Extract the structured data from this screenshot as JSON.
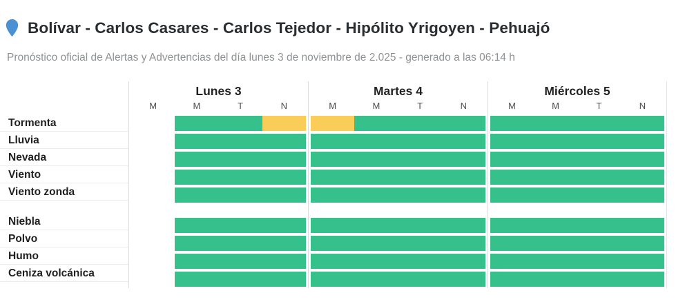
{
  "colors": {
    "alert_ok_green": "#36c18c",
    "alert_warn_yellow": "#f9cd57",
    "pin_blue": "#4a90d2"
  },
  "header": {
    "title": "Bolívar - Carlos Casares - Carlos Tejedor - Hipólito Yrigoyen - Pehuajó",
    "subtitle": "Pronóstico oficial de Alertas y Advertencias del día lunes 3 de noviembre de 2.025 - generado a las 06:14 h"
  },
  "table": {
    "days": [
      {
        "label": "Lunes 3",
        "periods": [
          "M",
          "M",
          "T",
          "N"
        ]
      },
      {
        "label": "Martes 4",
        "periods": [
          "M",
          "M",
          "T",
          "N"
        ]
      },
      {
        "label": "Miércoles 5",
        "periods": [
          "M",
          "M",
          "T",
          "N"
        ]
      }
    ],
    "row_groups": [
      {
        "rows": [
          {
            "label": "Tormenta",
            "cells": [
              [
                "none",
                "ok",
                "ok",
                "warn"
              ],
              [
                "warn",
                "ok",
                "ok",
                "ok"
              ],
              [
                "ok",
                "ok",
                "ok",
                "ok"
              ]
            ]
          },
          {
            "label": "Lluvia",
            "cells": [
              [
                "none",
                "ok",
                "ok",
                "ok"
              ],
              [
                "ok",
                "ok",
                "ok",
                "ok"
              ],
              [
                "ok",
                "ok",
                "ok",
                "ok"
              ]
            ]
          },
          {
            "label": "Nevada",
            "cells": [
              [
                "none",
                "ok",
                "ok",
                "ok"
              ],
              [
                "ok",
                "ok",
                "ok",
                "ok"
              ],
              [
                "ok",
                "ok",
                "ok",
                "ok"
              ]
            ]
          },
          {
            "label": "Viento",
            "cells": [
              [
                "none",
                "ok",
                "ok",
                "ok"
              ],
              [
                "ok",
                "ok",
                "ok",
                "ok"
              ],
              [
                "ok",
                "ok",
                "ok",
                "ok"
              ]
            ]
          },
          {
            "label": "Viento zonda",
            "cells": [
              [
                "none",
                "ok",
                "ok",
                "ok"
              ],
              [
                "ok",
                "ok",
                "ok",
                "ok"
              ],
              [
                "ok",
                "ok",
                "ok",
                "ok"
              ]
            ]
          }
        ]
      },
      {
        "rows": [
          {
            "label": "Niebla",
            "cells": [
              [
                "none",
                "ok",
                "ok",
                "ok"
              ],
              [
                "ok",
                "ok",
                "ok",
                "ok"
              ],
              [
                "ok",
                "ok",
                "ok",
                "ok"
              ]
            ]
          },
          {
            "label": "Polvo",
            "cells": [
              [
                "none",
                "ok",
                "ok",
                "ok"
              ],
              [
                "ok",
                "ok",
                "ok",
                "ok"
              ],
              [
                "ok",
                "ok",
                "ok",
                "ok"
              ]
            ]
          },
          {
            "label": "Humo",
            "cells": [
              [
                "none",
                "ok",
                "ok",
                "ok"
              ],
              [
                "ok",
                "ok",
                "ok",
                "ok"
              ],
              [
                "ok",
                "ok",
                "ok",
                "ok"
              ]
            ]
          },
          {
            "label": "Ceniza volcánica",
            "cells": [
              [
                "none",
                "ok",
                "ok",
                "ok"
              ],
              [
                "ok",
                "ok",
                "ok",
                "ok"
              ],
              [
                "ok",
                "ok",
                "ok",
                "ok"
              ]
            ]
          }
        ]
      }
    ]
  }
}
